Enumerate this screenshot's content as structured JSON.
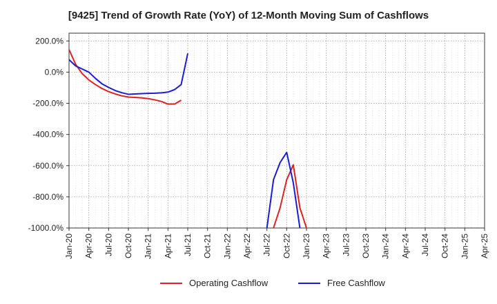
{
  "chart_data": {
    "type": "line",
    "title": "[9425]  Trend of Growth Rate (YoY) of 12-Month Moving Sum of Cashflows",
    "xlabel": "",
    "ylabel": "",
    "ylim": [
      -1000,
      250
    ],
    "y_ticks": [
      200,
      0,
      -200,
      -400,
      -600,
      -800,
      -1000
    ],
    "y_tick_labels": [
      "200.0%",
      "0.0%",
      "-200.0%",
      "-400.0%",
      "-600.0%",
      "-800.0%",
      "-1000.0%"
    ],
    "x_ticks": [
      "Jan-20",
      "Apr-20",
      "Jul-20",
      "Oct-20",
      "Jan-21",
      "Apr-21",
      "Jul-21",
      "Oct-21",
      "Jan-22",
      "Apr-22",
      "Jul-22",
      "Oct-22",
      "Jan-23",
      "Apr-23",
      "Jul-23",
      "Oct-23",
      "Jan-24",
      "Apr-24",
      "Jul-24",
      "Oct-24",
      "Jan-25",
      "Apr-25"
    ],
    "grid": true,
    "legend_position": "bottom",
    "series": [
      {
        "name": "Operating Cashflow",
        "color": "#e02020",
        "segments": [
          [
            {
              "x": "2020-01",
              "y": 145
            },
            {
              "x": "2020-02",
              "y": 50
            },
            {
              "x": "2020-03",
              "y": -10
            },
            {
              "x": "2020-04",
              "y": -50
            },
            {
              "x": "2020-05",
              "y": -80
            },
            {
              "x": "2020-06",
              "y": -105
            },
            {
              "x": "2020-07",
              "y": -125
            },
            {
              "x": "2020-08",
              "y": -140
            },
            {
              "x": "2020-09",
              "y": -152
            },
            {
              "x": "2020-10",
              "y": -160
            },
            {
              "x": "2020-11",
              "y": -162
            },
            {
              "x": "2020-12",
              "y": -165
            },
            {
              "x": "2021-01",
              "y": -170
            },
            {
              "x": "2021-02",
              "y": -178
            },
            {
              "x": "2021-03",
              "y": -188
            },
            {
              "x": "2021-04",
              "y": -205
            },
            {
              "x": "2021-05",
              "y": -205
            },
            {
              "x": "2021-06",
              "y": -180
            }
          ],
          [
            {
              "x": "2022-08",
              "y": -1000
            },
            {
              "x": "2022-09",
              "y": -870
            },
            {
              "x": "2022-10",
              "y": -690
            },
            {
              "x": "2022-11",
              "y": -595
            },
            {
              "x": "2022-12",
              "y": -870
            },
            {
              "x": "2023-01",
              "y": -1000
            }
          ]
        ]
      },
      {
        "name": "Free Cashflow",
        "color": "#1a1adc",
        "segments": [
          [
            {
              "x": "2020-01",
              "y": 80
            },
            {
              "x": "2020-02",
              "y": 40
            },
            {
              "x": "2020-03",
              "y": 20
            },
            {
              "x": "2020-04",
              "y": 0
            },
            {
              "x": "2020-05",
              "y": -40
            },
            {
              "x": "2020-06",
              "y": -75
            },
            {
              "x": "2020-07",
              "y": -98
            },
            {
              "x": "2020-08",
              "y": -118
            },
            {
              "x": "2020-09",
              "y": -132
            },
            {
              "x": "2020-10",
              "y": -142
            },
            {
              "x": "2020-11",
              "y": -140
            },
            {
              "x": "2020-12",
              "y": -138
            },
            {
              "x": "2021-01",
              "y": -136
            },
            {
              "x": "2021-02",
              "y": -135
            },
            {
              "x": "2021-03",
              "y": -133
            },
            {
              "x": "2021-04",
              "y": -128
            },
            {
              "x": "2021-05",
              "y": -112
            },
            {
              "x": "2021-06",
              "y": -80
            },
            {
              "x": "2021-07",
              "y": 120
            }
          ],
          [
            {
              "x": "2022-07",
              "y": -1000
            },
            {
              "x": "2022-08",
              "y": -690
            },
            {
              "x": "2022-09",
              "y": -580
            },
            {
              "x": "2022-10",
              "y": -515
            },
            {
              "x": "2022-11",
              "y": -710
            },
            {
              "x": "2022-12",
              "y": -1000
            }
          ]
        ]
      }
    ]
  }
}
